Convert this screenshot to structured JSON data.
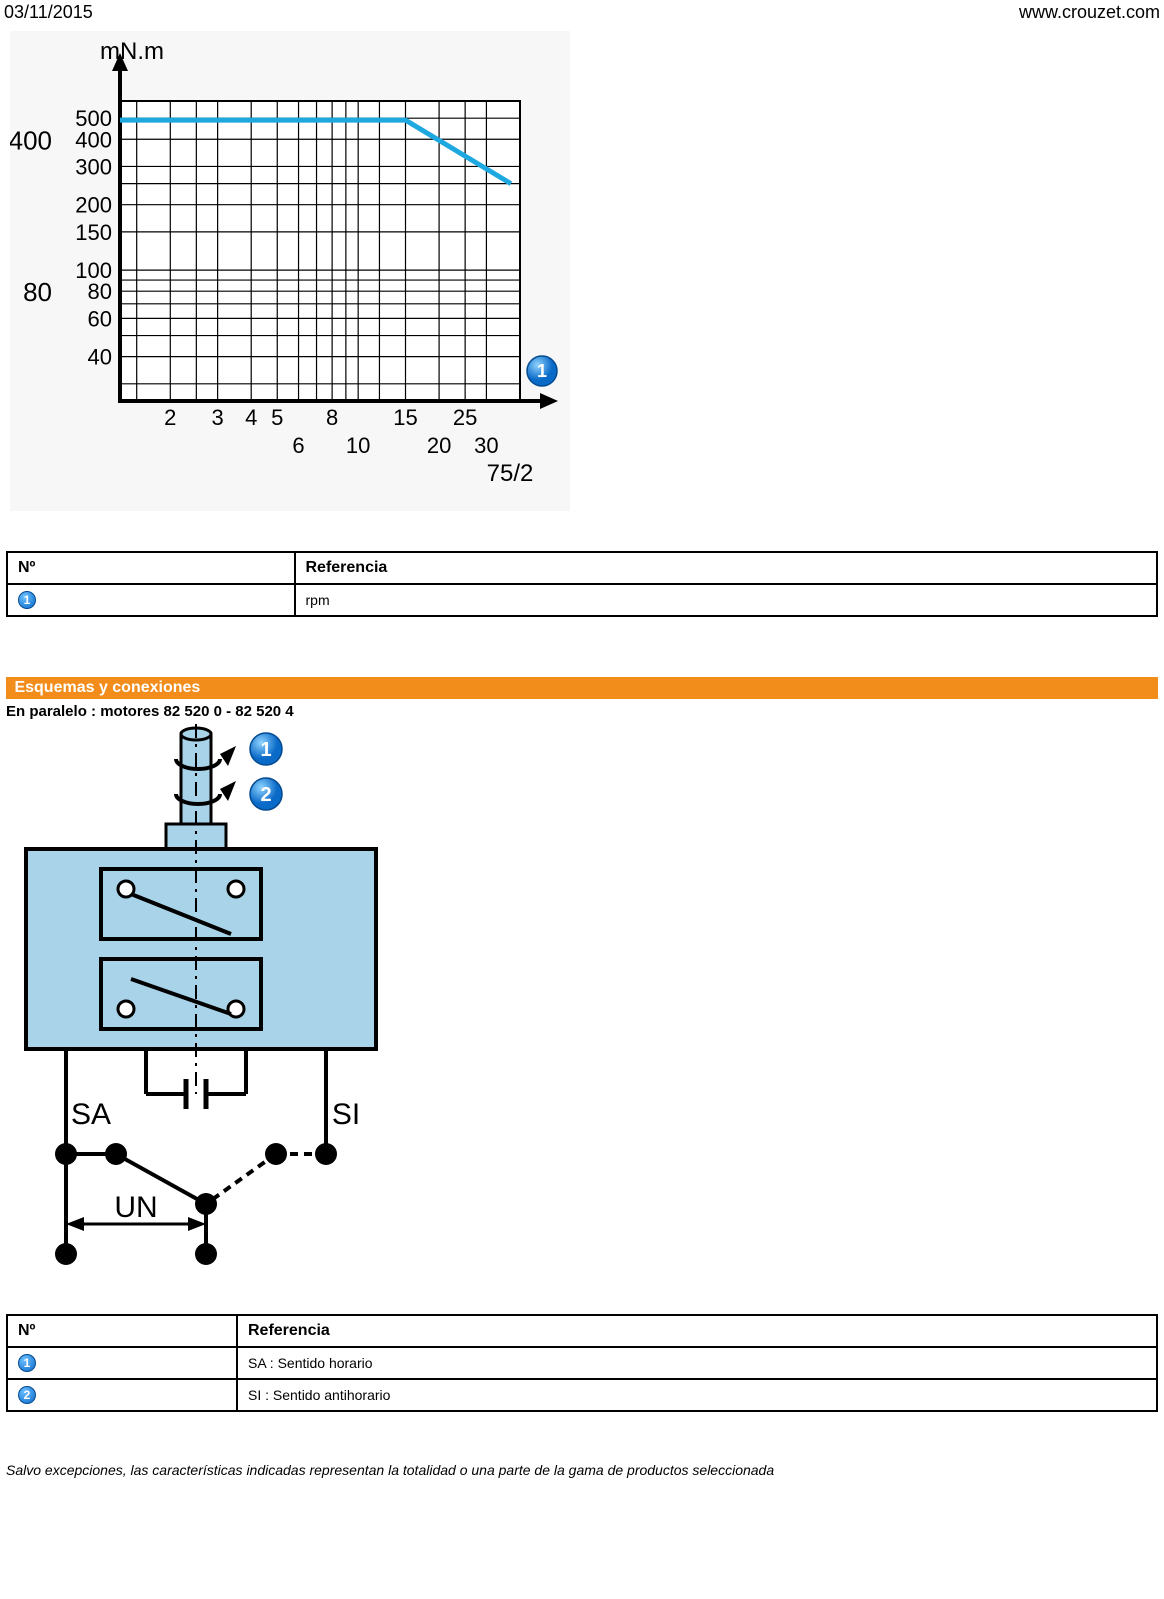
{
  "header": {
    "date": "03/11/2015",
    "site": "www.crouzet.com"
  },
  "chart": {
    "type": "line",
    "y_unit": "mN.m",
    "y_ticks_major": [
      {
        "v": 500,
        "label": "500"
      },
      {
        "v": 400,
        "label": "400"
      },
      {
        "v": 300,
        "label": "300"
      },
      {
        "v": 200,
        "label": "200"
      },
      {
        "v": 150,
        "label": "150"
      },
      {
        "v": 100,
        "label": "100"
      },
      {
        "v": 80,
        "label": "80"
      },
      {
        "v": 60,
        "label": "60"
      },
      {
        "v": 40,
        "label": "40"
      }
    ],
    "y_left_outside_labels": [
      "400",
      "80"
    ],
    "x_ticks": [
      {
        "v": 2,
        "label": "2",
        "row": 0
      },
      {
        "v": 3,
        "label": "3",
        "row": 0
      },
      {
        "v": 4,
        "label": "4",
        "row": 0
      },
      {
        "v": 5,
        "label": "5",
        "row": 0
      },
      {
        "v": 6,
        "label": "6",
        "row": 1
      },
      {
        "v": 8,
        "label": "8",
        "row": 0
      },
      {
        "v": 10,
        "label": "10",
        "row": 1
      },
      {
        "v": 15,
        "label": "15",
        "row": 0
      },
      {
        "v": 20,
        "label": "20",
        "row": 1
      },
      {
        "v": 25,
        "label": "25",
        "row": 0
      },
      {
        "v": 30,
        "label": "30",
        "row": 1
      }
    ],
    "x_note_right": "75/2",
    "series": {
      "color": "#1ea8e0",
      "stroke_width": 5,
      "points": [
        {
          "x": 1.3,
          "y": 490
        },
        {
          "x": 15,
          "y": 490
        },
        {
          "x": 37,
          "y": 250
        }
      ]
    },
    "badge_label": "1",
    "grid_color": "#000000",
    "background_color": "#ffffff"
  },
  "table1": {
    "headers": [
      "Nº",
      "Referencia"
    ],
    "rows": [
      {
        "badge": "1",
        "ref": "rpm"
      }
    ]
  },
  "section_diagrams_title": "Esquemas y conexiones",
  "schematic": {
    "subtitle": "En paralelo : motores 82 520 0 - 82 520 4",
    "badge1": "1",
    "badge2": "2",
    "label_SA": "SA",
    "label_SI": "SI",
    "label_UN": "UN",
    "body_fill": "#a9d3e8",
    "shaft_fill": "#a9d3e8",
    "stroke": "#000000"
  },
  "table2": {
    "headers": [
      "Nº",
      "Referencia"
    ],
    "rows": [
      {
        "badge": "1",
        "ref": "SA : Sentido horario"
      },
      {
        "badge": "2",
        "ref": "SI : Sentido antihorario"
      }
    ]
  },
  "footer": "Salvo excepciones, las características indicadas representan la totalidad o una parte de la gama de productos seleccionada"
}
